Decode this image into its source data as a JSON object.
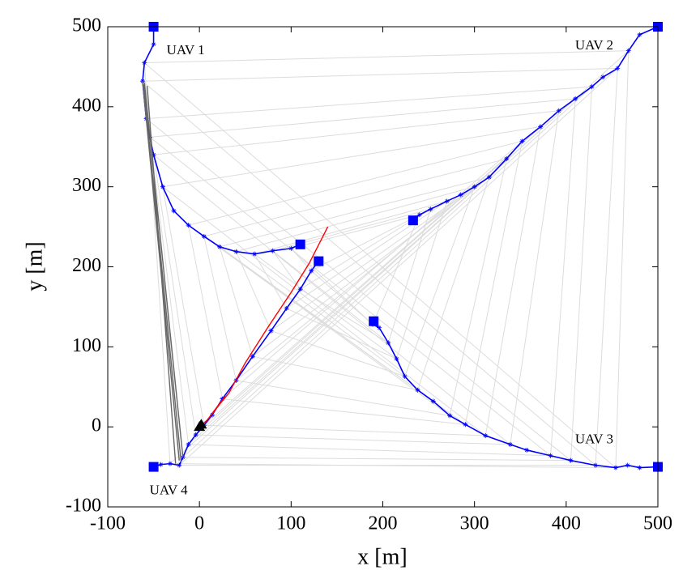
{
  "chart_data": {
    "type": "line",
    "xlabel": "x [m]",
    "ylabel": "y [m]",
    "xlim": [
      -100,
      500
    ],
    "ylim": [
      -100,
      500
    ],
    "xticks": [
      -100,
      0,
      100,
      200,
      300,
      400,
      500
    ],
    "yticks": [
      -100,
      0,
      100,
      200,
      300,
      400,
      500
    ],
    "series": [
      {
        "name": "UAV 1",
        "color": "#0000ff",
        "x": [
          -50,
          -50,
          -60,
          -62,
          -58,
          -54,
          -50,
          -40,
          -28,
          -12,
          5,
          22,
          40,
          60,
          80,
          100,
          110
        ],
        "y": [
          500,
          478,
          455,
          432,
          385,
          362,
          340,
          300,
          270,
          252,
          238,
          225,
          219,
          216,
          220,
          223,
          228
        ]
      },
      {
        "name": "UAV 2",
        "color": "#0000ff",
        "x": [
          500,
          480,
          468,
          456,
          440,
          428,
          410,
          392,
          372,
          352,
          335,
          316,
          300,
          285,
          270,
          252,
          240,
          233
        ],
        "y": [
          500,
          490,
          470,
          448,
          437,
          425,
          410,
          395,
          375,
          357,
          335,
          312,
          300,
          290,
          282,
          272,
          265,
          258
        ]
      },
      {
        "name": "UAV 3",
        "color": "#0000ff",
        "x": [
          500,
          480,
          467,
          454,
          432,
          405,
          383,
          357,
          339,
          312,
          290,
          273,
          255,
          238,
          224,
          215,
          206,
          196,
          189,
          190
        ],
        "y": [
          -50,
          -51,
          -48,
          -51,
          -48,
          -42,
          -36,
          -29,
          -22,
          -11,
          3,
          14,
          32,
          46,
          63,
          85,
          105,
          124,
          128,
          132
        ]
      },
      {
        "name": "UAV 4",
        "color": "#0000ff",
        "x": [
          -50,
          -42,
          -32,
          -22,
          -18,
          -12,
          -4,
          5,
          14,
          25,
          40,
          58,
          78,
          95,
          110,
          122,
          130
        ],
        "y": [
          -50,
          -47,
          -46,
          -48,
          -38,
          -22,
          -10,
          2,
          15,
          35,
          58,
          88,
          120,
          148,
          172,
          195,
          207
        ]
      },
      {
        "color": "#ff0000",
        "x": [
          0,
          8,
          22,
          12,
          28,
          16,
          32,
          50,
          75,
          100,
          120,
          140
        ],
        "y": [
          0,
          8,
          28,
          14,
          38,
          20,
          42,
          80,
          125,
          168,
          205,
          250
        ]
      },
      {
        "color": "#666666",
        "x": [
          -62,
          -22,
          null,
          -60,
          -18,
          null,
          -57,
          -26,
          null,
          -61,
          -20
        ],
        "y": [
          432,
          -42,
          null,
          430,
          -38,
          null,
          426,
          -46,
          null,
          428,
          -44
        ]
      },
      {
        "color": "#000000",
        "marker": "triangle",
        "x": [
          0,
          2
        ],
        "y": [
          0,
          3
        ]
      }
    ]
  }
}
